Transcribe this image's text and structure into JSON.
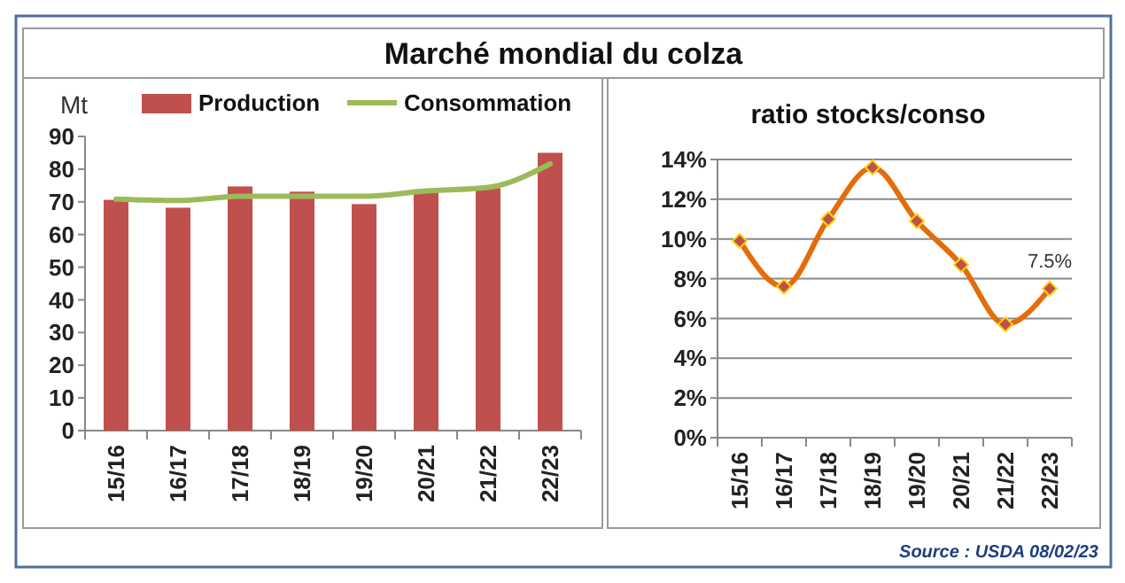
{
  "chart_data": [
    {
      "type": "bar",
      "title": "Marché mondial du colza",
      "ylabel": "Mt",
      "categories": [
        "15/16",
        "16/17",
        "17/18",
        "18/19",
        "19/20",
        "20/21",
        "21/22",
        "22/23"
      ],
      "ylim": [
        0,
        90
      ],
      "yticks": [
        0,
        10,
        20,
        30,
        40,
        50,
        60,
        70,
        80,
        90
      ],
      "grid": false,
      "legend": "top",
      "series": [
        {
          "name": "Production",
          "color": "#c0504d",
          "values": [
            70.6,
            68.2,
            74.7,
            73.1,
            69.3,
            73.8,
            74.2,
            85.0
          ]
        },
        {
          "name": "Consommation",
          "type": "line",
          "color": "#9bbb59",
          "marker": "none",
          "values": [
            70.8,
            70.4,
            71.7,
            71.7,
            71.7,
            73.3,
            74.4,
            81.6
          ]
        }
      ]
    },
    {
      "type": "line",
      "title": "ratio stocks/conso",
      "categories": [
        "15/16",
        "16/17",
        "17/18",
        "18/19",
        "19/20",
        "20/21",
        "21/22",
        "22/23"
      ],
      "ylim": [
        0,
        14
      ],
      "yticks": [
        {
          "value": 0,
          "label": "0%"
        },
        {
          "value": 2,
          "label": "2%"
        },
        {
          "value": 4,
          "label": "4%"
        },
        {
          "value": 6,
          "label": "6%"
        },
        {
          "value": 8,
          "label": "8%"
        },
        {
          "value": 10,
          "label": "10%"
        },
        {
          "value": 12,
          "label": "12%"
        },
        {
          "value": 14,
          "label": "14%"
        }
      ],
      "grid": "y",
      "marker": "diamond",
      "annotations": [
        "Source : USDA 08/02/23"
      ],
      "series": [
        {
          "color": "#e46c0a",
          "values": [
            9.9,
            7.6,
            11.0,
            13.6,
            10.9,
            8.7,
            5.7,
            7.5
          ],
          "value_labels": [
            null,
            null,
            null,
            null,
            null,
            null,
            null,
            "7.5%"
          ]
        }
      ]
    }
  ]
}
